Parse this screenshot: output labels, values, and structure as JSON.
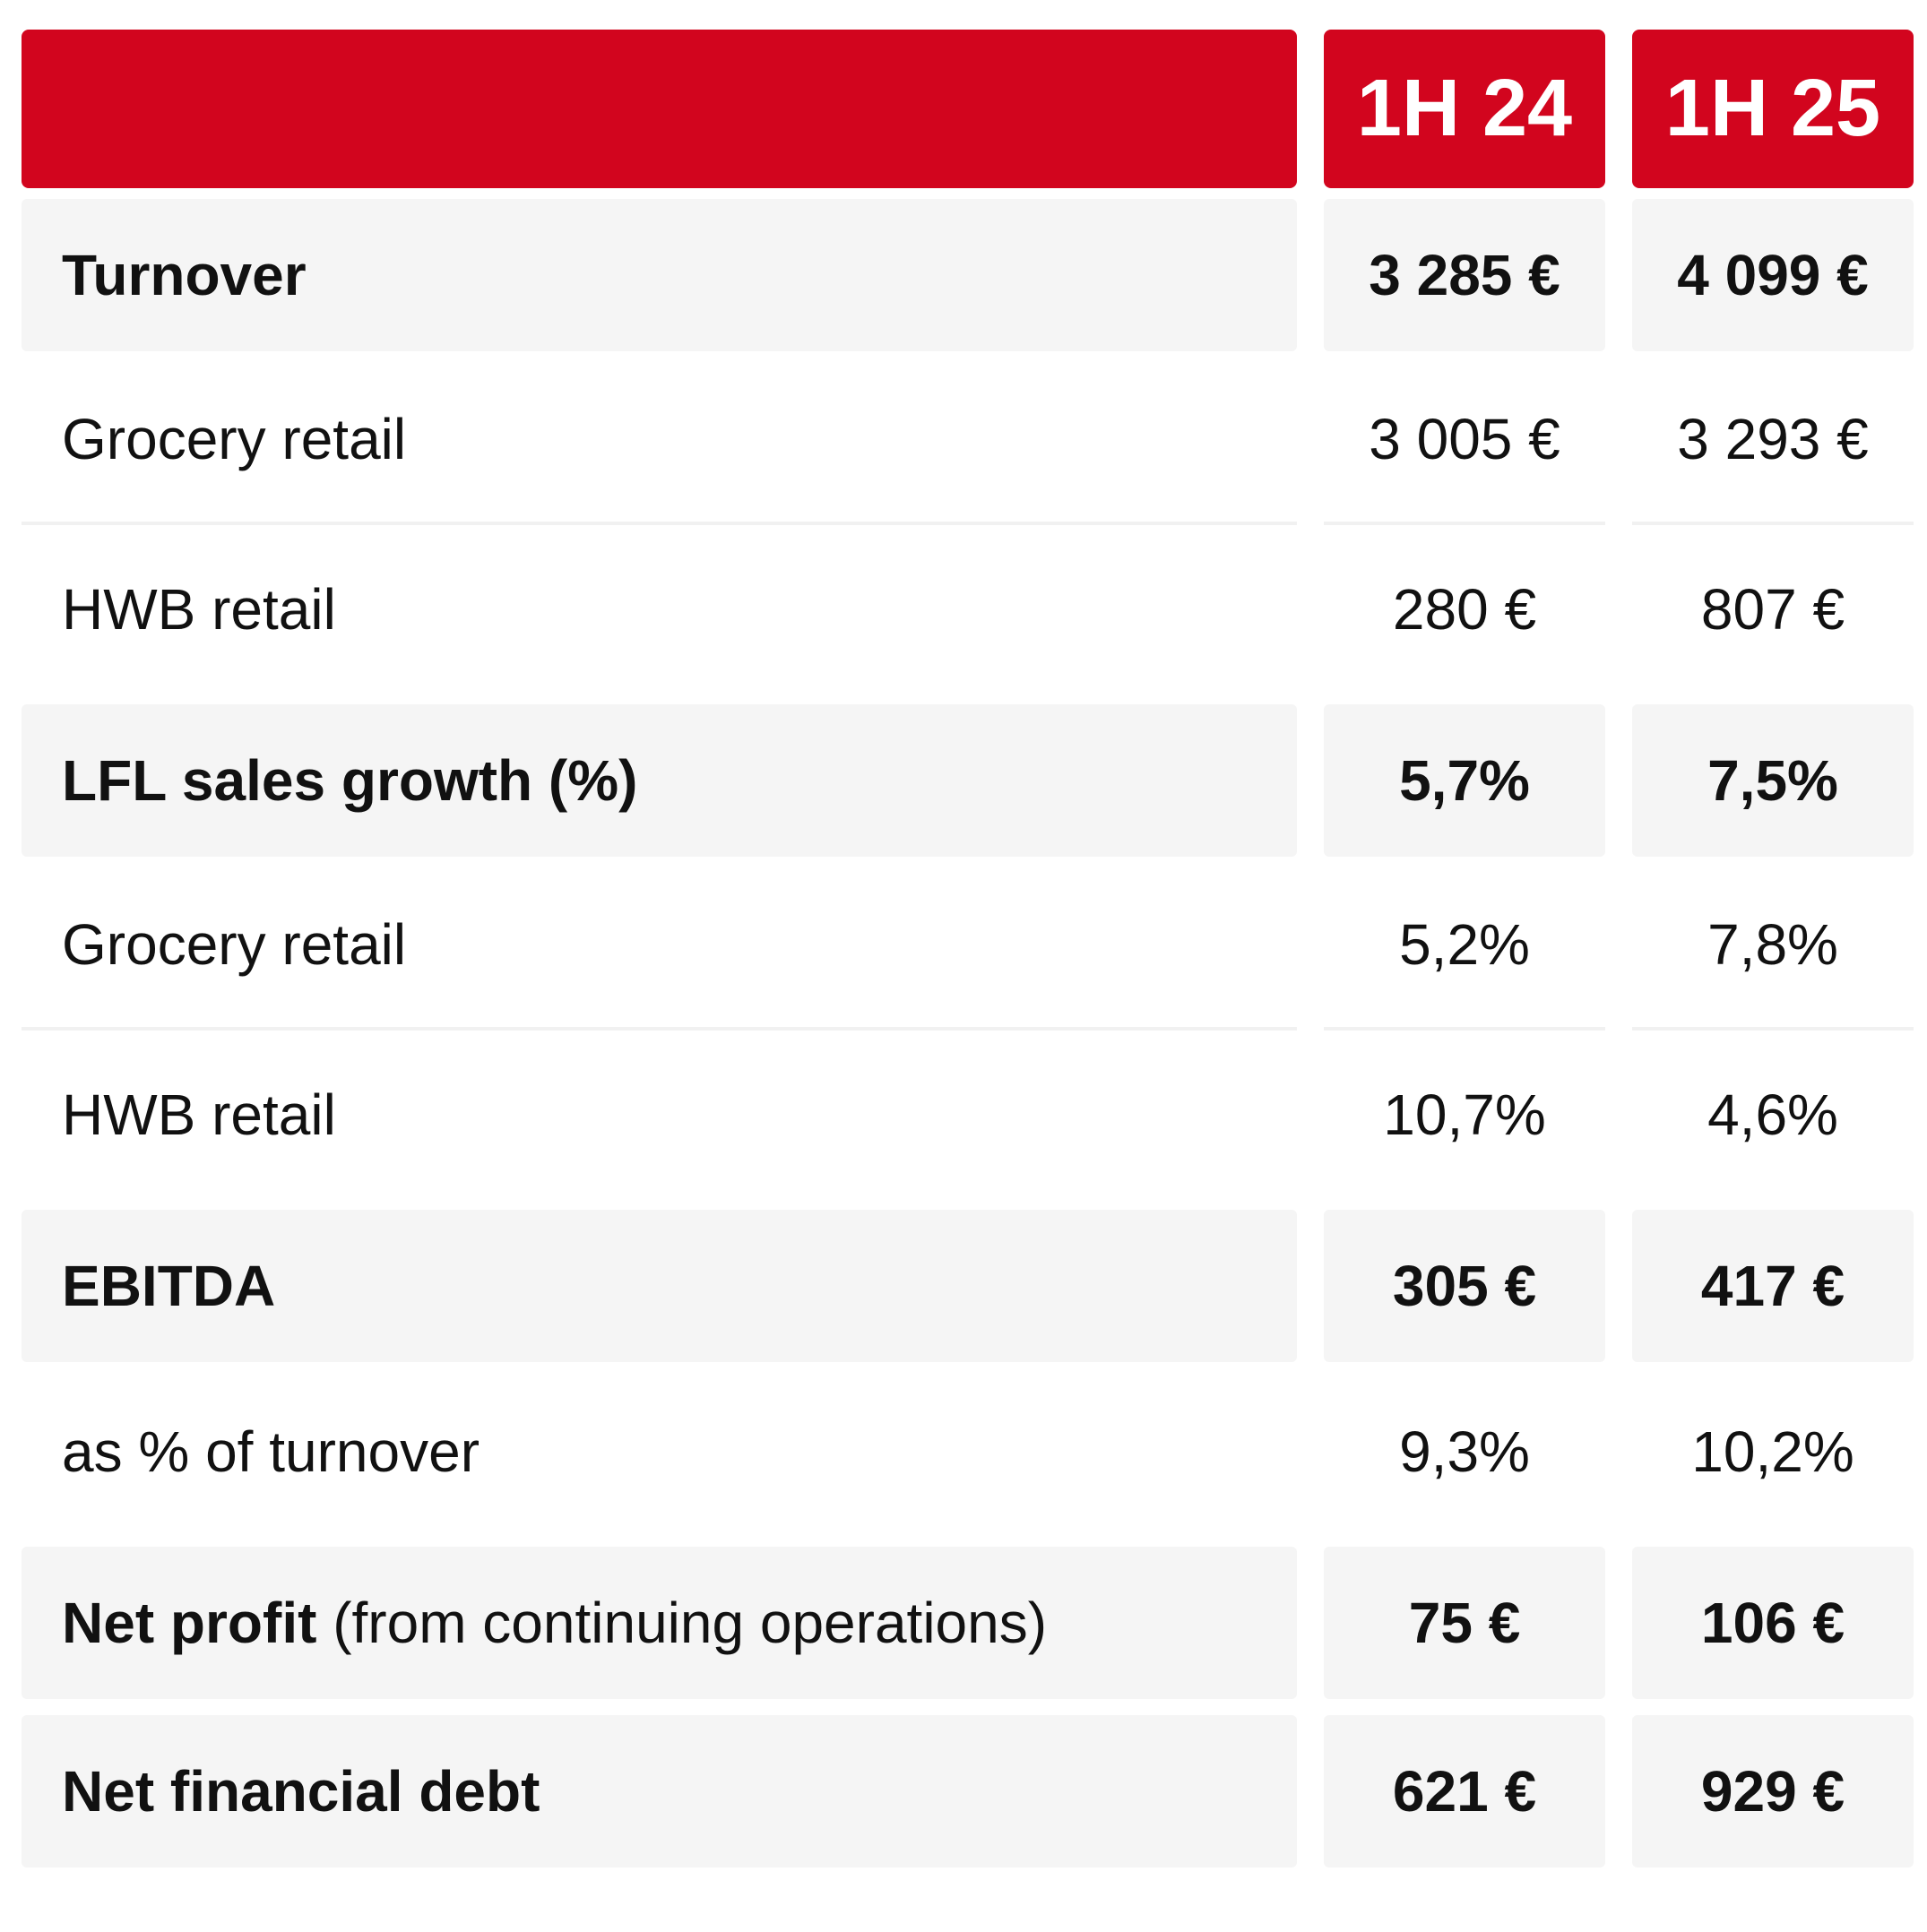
{
  "table": {
    "header": {
      "label_cell": "",
      "col_1h24": "1H 24",
      "col_1h25": "1H 25"
    },
    "rows": [
      {
        "label": "Turnover",
        "label_suffix": "",
        "v1": "3 285 €",
        "v2": "4 099 €",
        "emphasis": true
      },
      {
        "label": "Grocery retail",
        "label_suffix": "",
        "v1": "3 005 €",
        "v2": "3 293 €",
        "emphasis": false
      },
      {
        "label": "HWB retail",
        "label_suffix": "",
        "v1": "280 €",
        "v2": "807 €",
        "emphasis": false
      },
      {
        "label": "LFL sales growth (%)",
        "label_suffix": "",
        "v1": "5,7%",
        "v2": "7,5%",
        "emphasis": true
      },
      {
        "label": "Grocery retail",
        "label_suffix": "",
        "v1": "5,2%",
        "v2": "7,8%",
        "emphasis": false
      },
      {
        "label": "HWB retail",
        "label_suffix": "",
        "v1": "10,7%",
        "v2": "4,6%",
        "emphasis": false
      },
      {
        "label": "EBITDA",
        "label_suffix": "",
        "v1": "305 €",
        "v2": "417 €",
        "emphasis": true
      },
      {
        "label": "as % of turnover",
        "label_suffix": "",
        "v1": "9,3%",
        "v2": "10,2%",
        "emphasis": false
      },
      {
        "label": "Net profit",
        "label_suffix": " (from continuing operations)",
        "v1": "75 €",
        "v2": "106 €",
        "emphasis": true
      },
      {
        "label": "Net financial debt",
        "label_suffix": "",
        "v1": "621 €",
        "v2": "929 €",
        "emphasis": true
      }
    ],
    "colors": {
      "header_red": "#D2051E",
      "row_highlight_gray": "#F5F5F5",
      "separator": "#F1F1F1",
      "text": "#111111",
      "header_text": "#FFFFFF"
    }
  }
}
